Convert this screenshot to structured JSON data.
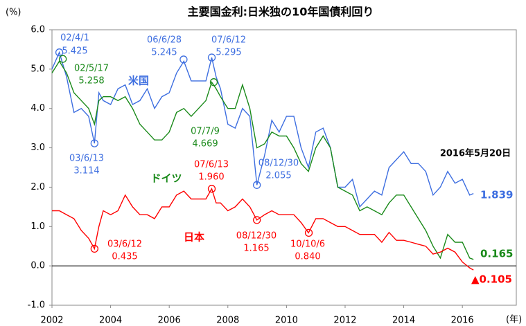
{
  "chart_data": {
    "type": "line",
    "title": "主要国金利:日米独の10年国債利回り",
    "y_label": "(%)",
    "x_label": "(年)",
    "as_of": "2016年5月20日",
    "xlim": [
      2002,
      2017.84
    ],
    "xticks": [
      2002,
      2004,
      2006,
      2008,
      2010,
      2012,
      2014,
      2016
    ],
    "ylim": [
      -1.0,
      6.0
    ],
    "yticks": [
      {
        "value": 6.0,
        "label": "6.0"
      },
      {
        "value": 5.0,
        "label": "5.0"
      },
      {
        "value": 4.0,
        "label": "4.0"
      },
      {
        "value": 3.0,
        "label": "3.0"
      },
      {
        "value": 2.0,
        "label": "2.0"
      },
      {
        "value": 1.0,
        "label": "1.0"
      },
      {
        "value": 0.0,
        "label": "0.0"
      },
      {
        "value": -1.0,
        "label": "-1.0"
      }
    ],
    "grid": false,
    "x": [
      2002,
      2002.25,
      2002.5,
      2002.75,
      2003,
      2003.25,
      2003.45,
      2003.6,
      2003.75,
      2004,
      2004.25,
      2004.5,
      2004.75,
      2005,
      2005.25,
      2005.5,
      2005.75,
      2006,
      2006.25,
      2006.5,
      2006.75,
      2007,
      2007.25,
      2007.45,
      2007.6,
      2007.75,
      2008,
      2008.25,
      2008.5,
      2008.75,
      2008.99,
      2009.25,
      2009.5,
      2009.75,
      2010,
      2010.25,
      2010.5,
      2010.75,
      2011,
      2011.25,
      2011.5,
      2011.75,
      2012,
      2012.25,
      2012.5,
      2012.75,
      2013,
      2013.25,
      2013.5,
      2013.75,
      2014,
      2014.25,
      2014.5,
      2014.75,
      2015,
      2015.25,
      2015.5,
      2015.75,
      2016,
      2016.25,
      2016.38
    ],
    "series": [
      {
        "name": "米国",
        "color": "#3d6ee0",
        "values": [
          5.0,
          5.425,
          4.8,
          3.9,
          4.0,
          3.8,
          3.114,
          4.4,
          4.2,
          4.1,
          4.5,
          4.6,
          4.1,
          4.2,
          4.5,
          4.0,
          4.3,
          4.4,
          4.9,
          5.2,
          4.7,
          4.7,
          4.7,
          5.295,
          4.8,
          4.5,
          3.6,
          3.5,
          4.0,
          3.8,
          2.055,
          2.8,
          3.7,
          3.4,
          3.8,
          3.8,
          3.0,
          2.5,
          3.4,
          3.5,
          3.0,
          2.0,
          2.0,
          2.2,
          1.5,
          1.7,
          1.9,
          1.8,
          2.5,
          2.7,
          2.9,
          2.6,
          2.6,
          2.4,
          1.8,
          2.0,
          2.4,
          2.1,
          2.2,
          1.8,
          1.839
        ]
      },
      {
        "name": "ドイツ",
        "color": "#1a8a1a",
        "values": [
          4.9,
          5.2,
          4.9,
          4.4,
          4.2,
          4.0,
          3.6,
          4.2,
          4.3,
          4.3,
          4.2,
          4.3,
          4.0,
          3.6,
          3.4,
          3.2,
          3.2,
          3.4,
          3.9,
          4.0,
          3.8,
          4.0,
          4.2,
          4.669,
          4.5,
          4.3,
          4.0,
          4.0,
          4.6,
          4.0,
          3.0,
          3.1,
          3.4,
          3.3,
          3.3,
          3.0,
          2.6,
          2.4,
          3.0,
          3.3,
          3.0,
          2.0,
          1.9,
          1.8,
          1.4,
          1.5,
          1.4,
          1.3,
          1.6,
          1.8,
          1.8,
          1.5,
          1.2,
          0.9,
          0.5,
          0.2,
          0.8,
          0.6,
          0.6,
          0.2,
          0.165
        ]
      },
      {
        "name": "日本",
        "color": "#ff0000",
        "last_label": "▲0.105",
        "values": [
          1.4,
          1.4,
          1.3,
          1.2,
          0.9,
          0.7,
          0.435,
          1.0,
          1.4,
          1.3,
          1.4,
          1.8,
          1.5,
          1.3,
          1.3,
          1.2,
          1.5,
          1.5,
          1.8,
          1.9,
          1.7,
          1.7,
          1.7,
          1.96,
          1.6,
          1.6,
          1.4,
          1.5,
          1.7,
          1.5,
          1.165,
          1.3,
          1.4,
          1.3,
          1.3,
          1.3,
          1.1,
          0.84,
          1.2,
          1.2,
          1.1,
          1.0,
          1.0,
          0.9,
          0.8,
          0.8,
          0.8,
          0.6,
          0.85,
          0.65,
          0.65,
          0.6,
          0.55,
          0.5,
          0.3,
          0.35,
          0.45,
          0.35,
          0.1,
          -0.05,
          -0.105
        ]
      }
    ],
    "annotations": [
      {
        "series": 0,
        "x": 2002.25,
        "value": 5.425,
        "date": "02/4/1",
        "value_label": "5.425"
      },
      {
        "series": 0,
        "x": 2003.45,
        "value": 3.114,
        "date": "03/6/13",
        "value_label": "3.114"
      },
      {
        "series": 0,
        "x": 2006.49,
        "value": 5.245,
        "date": "06/6/28",
        "value_label": "5.245"
      },
      {
        "series": 0,
        "x": 2007.45,
        "value": 5.295,
        "date": "07/6/12",
        "value_label": "5.295"
      },
      {
        "series": 0,
        "x": 2008.99,
        "value": 2.055,
        "date": "08/12/30",
        "value_label": "2.055"
      },
      {
        "series": 1,
        "x": 2002.37,
        "value": 5.258,
        "date": "02/5/17",
        "value_label": "5.258"
      },
      {
        "series": 1,
        "x": 2007.52,
        "value": 4.669,
        "date": "07/7/9",
        "value_label": "4.669"
      },
      {
        "series": 2,
        "x": 2003.45,
        "value": 0.435,
        "date": "03/6/12",
        "value_label": "0.435"
      },
      {
        "series": 2,
        "x": 2007.45,
        "value": 1.96,
        "date": "07/6/13",
        "value_label": "1.960"
      },
      {
        "series": 2,
        "x": 2008.99,
        "value": 1.165,
        "date": "08/12/30",
        "value_label": "1.165"
      },
      {
        "series": 2,
        "x": 2010.76,
        "value": 0.84,
        "date": "10/10/6",
        "value_label": "0.840"
      }
    ]
  }
}
